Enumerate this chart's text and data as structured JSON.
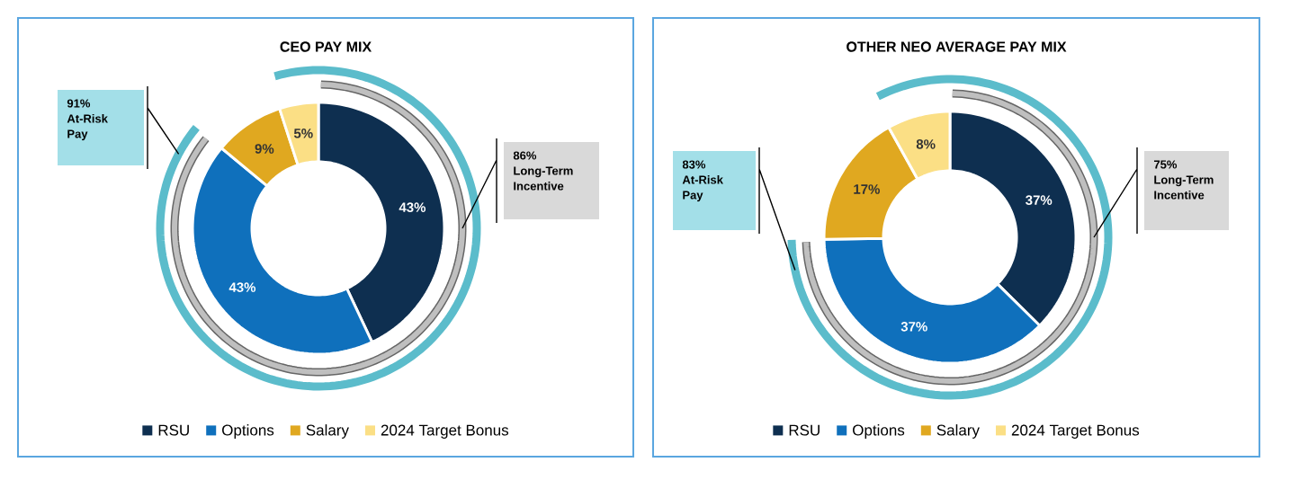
{
  "chart_data": [
    {
      "type": "donut",
      "title": "CEO PAY MIX",
      "categories": [
        "RSU",
        "Options",
        "Salary",
        "2024 Target Bonus"
      ],
      "values": [
        43,
        43,
        9,
        5
      ],
      "value_labels": [
        "43%",
        "43%",
        "9%",
        "5%"
      ],
      "colors": [
        "#0e2f50",
        "#0f70bc",
        "#e0a820",
        "#fbdf85"
      ],
      "legend": "bottom",
      "annotations": [
        "91% At-Risk Pay",
        "86% Long-Term Incentive"
      ]
    },
    {
      "type": "donut",
      "title": "OTHER NEO AVERAGE PAY MIX",
      "categories": [
        "RSU",
        "Options",
        "Salary",
        "2024 Target Bonus"
      ],
      "values": [
        37,
        37,
        17,
        8
      ],
      "value_labels": [
        "37%",
        "37%",
        "17%",
        "8%"
      ],
      "colors": [
        "#0e2f50",
        "#0f70bc",
        "#e0a820",
        "#fbdf85"
      ],
      "legend": "bottom",
      "annotations": [
        "83% At-Risk Pay",
        "75% Long-Term Incentive"
      ]
    }
  ]
}
